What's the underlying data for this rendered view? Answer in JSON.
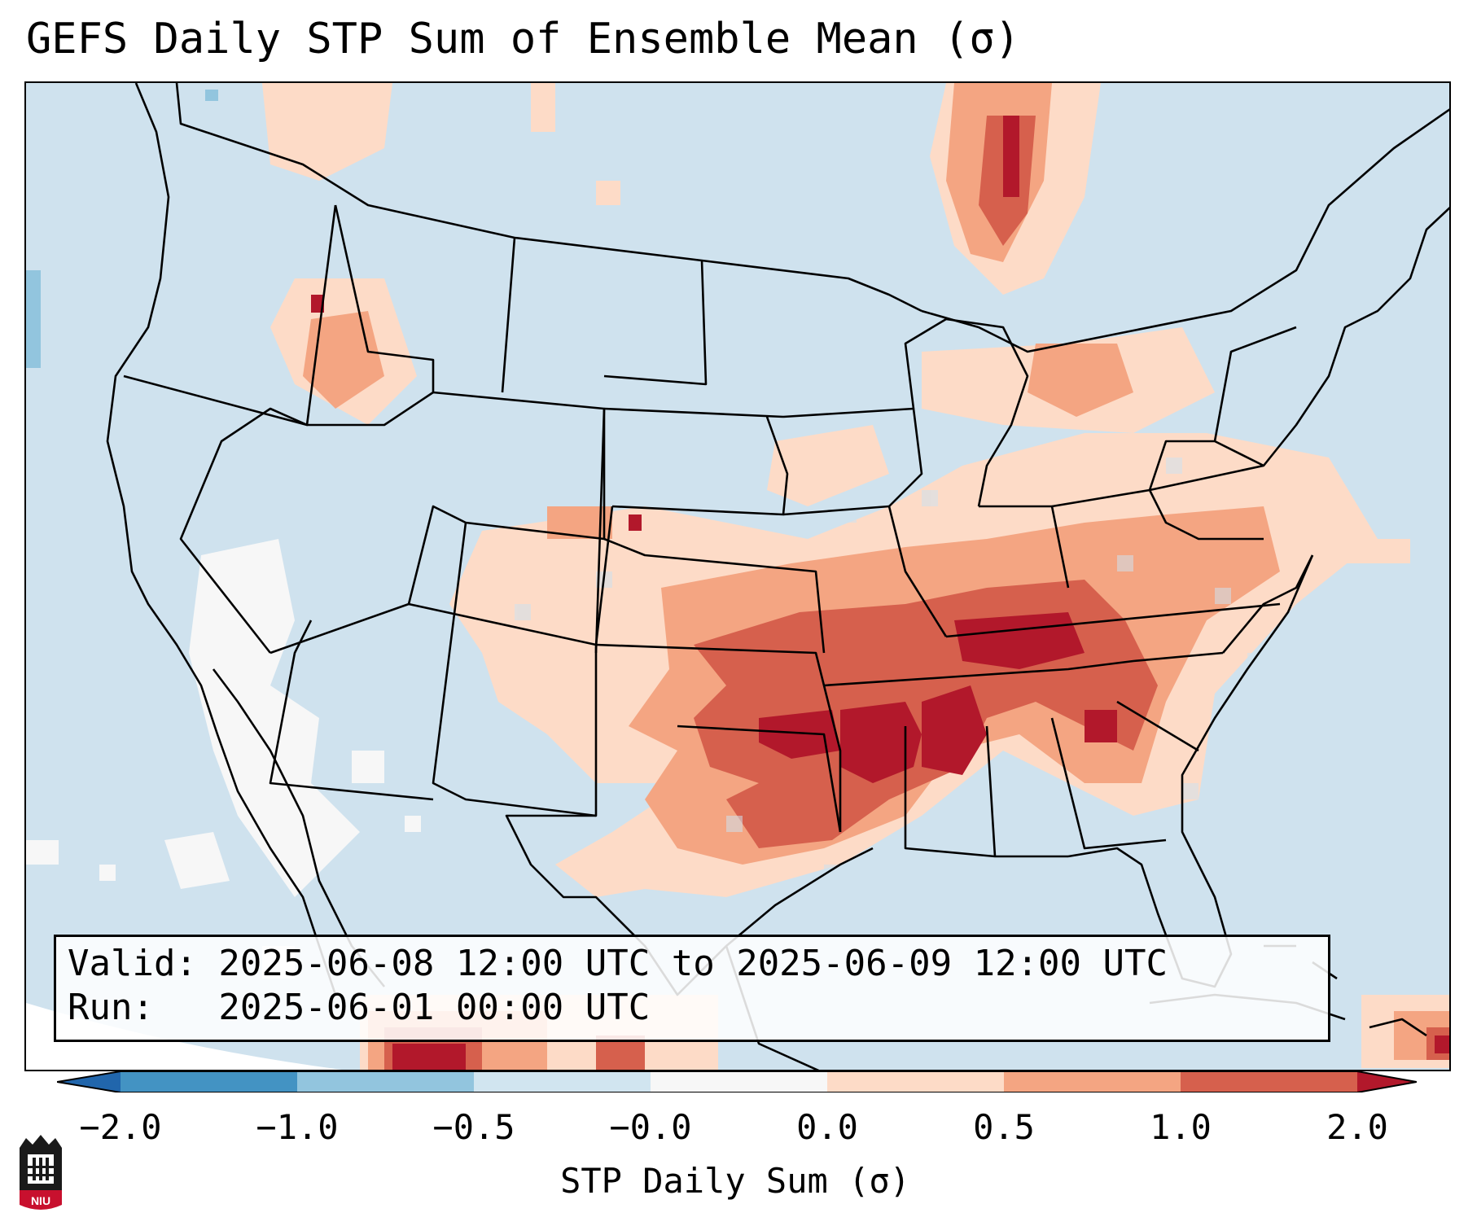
{
  "title": "GEFS Daily STP Sum of Ensemble Mean (σ)",
  "info": {
    "valid_line": "Valid: 2025-06-08 12:00 UTC to 2025-06-09 12:00 UTC",
    "run_line": "Run:   2025-06-01 00:00 UTC"
  },
  "colorbar": {
    "label": "STP Daily Sum (σ)",
    "ticks": [
      "−2.0",
      "−1.0",
      "−0.5",
      "−0.0",
      "0.0",
      "0.5",
      "1.0",
      "2.0"
    ],
    "colors": [
      "#4393c3",
      "#92c5de",
      "#d1e5f0",
      "#f7f7f7",
      "#fddbc7",
      "#f4a582",
      "#d6604d"
    ],
    "extend_low": "#2166ac",
    "extend_high": "#b2182b"
  },
  "map": {
    "background": "#cfe2ee",
    "region": "Contiguous United States",
    "anomaly_areas": [
      {
        "name": "southern-plains-mississippi-valley",
        "category": "2.0"
      },
      {
        "name": "tennessee-valley-southeast",
        "category": "1.0"
      },
      {
        "name": "ohio-valley-mid-atlantic",
        "category": "0.5"
      },
      {
        "name": "central-plains",
        "category": "0.5"
      },
      {
        "name": "texas-gulf-coast",
        "category": "1.0"
      },
      {
        "name": "great-lakes-ontario",
        "category": "0.5"
      },
      {
        "name": "northern-rockies",
        "category": "0.5"
      },
      {
        "name": "baja-mexico-west",
        "category": "-0.0"
      }
    ]
  },
  "logo": {
    "text": "NIU"
  }
}
